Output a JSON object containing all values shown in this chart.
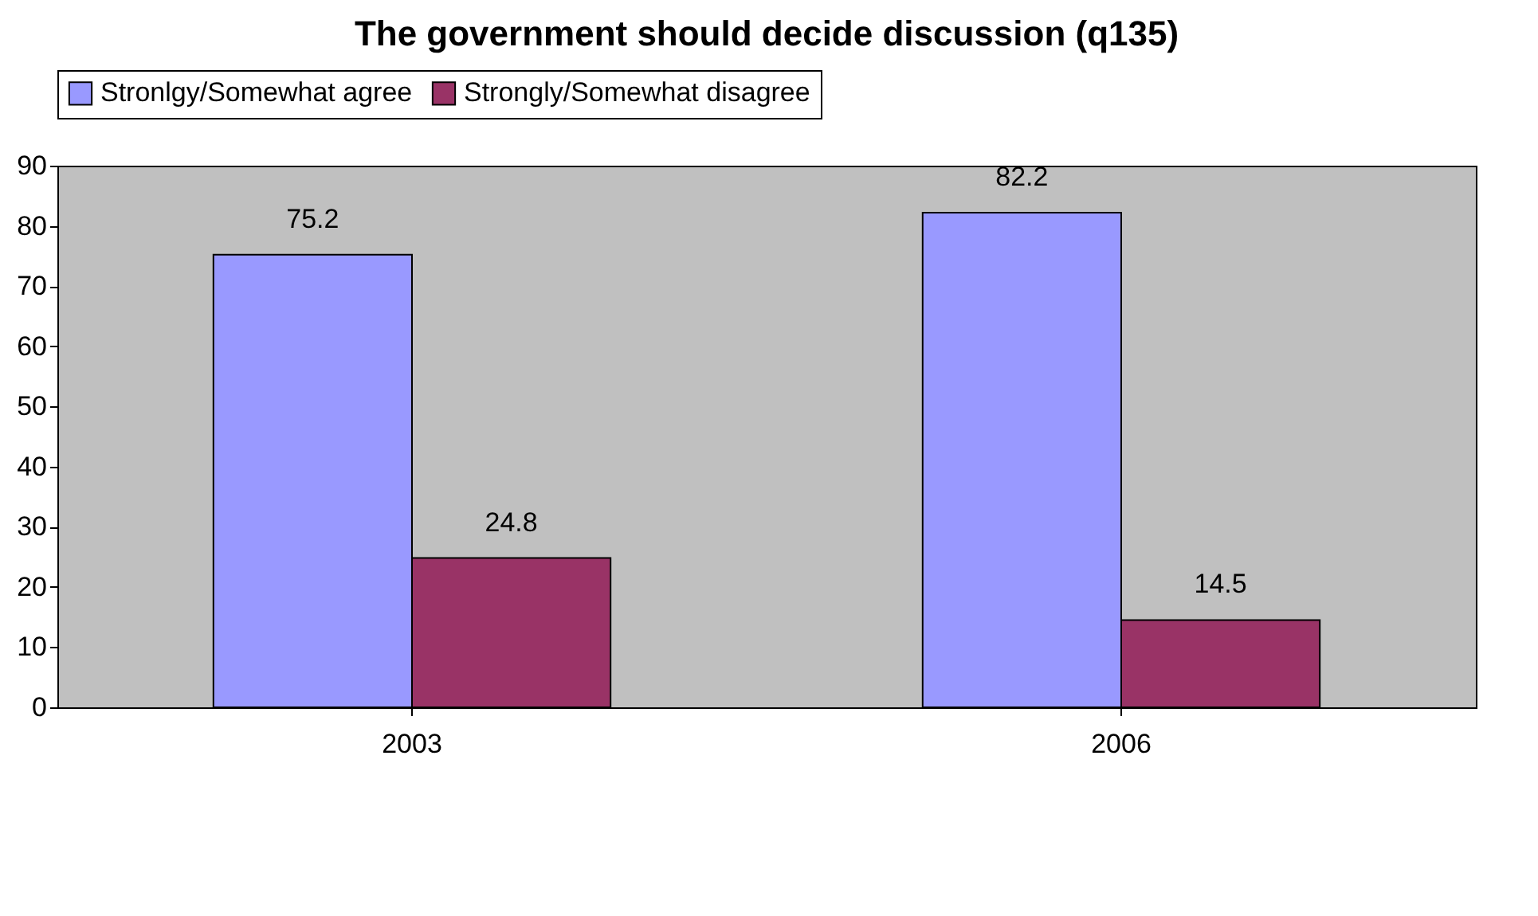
{
  "chart_data": {
    "type": "bar",
    "title": "The government should decide discussion (q135)",
    "categories": [
      "2003",
      "2006"
    ],
    "series": [
      {
        "name": "Stronlgy/Somewhat agree",
        "color": "#9999ff",
        "values": [
          75.2,
          82.2
        ]
      },
      {
        "name": "Strongly/Somewhat disagree",
        "color": "#993366",
        "values": [
          24.8,
          14.5
        ]
      }
    ],
    "ylim": [
      0,
      90
    ],
    "yticks": [
      0,
      10,
      20,
      30,
      40,
      50,
      60,
      70,
      80,
      90
    ],
    "grid": false,
    "legend": "top",
    "data_labels": true
  }
}
